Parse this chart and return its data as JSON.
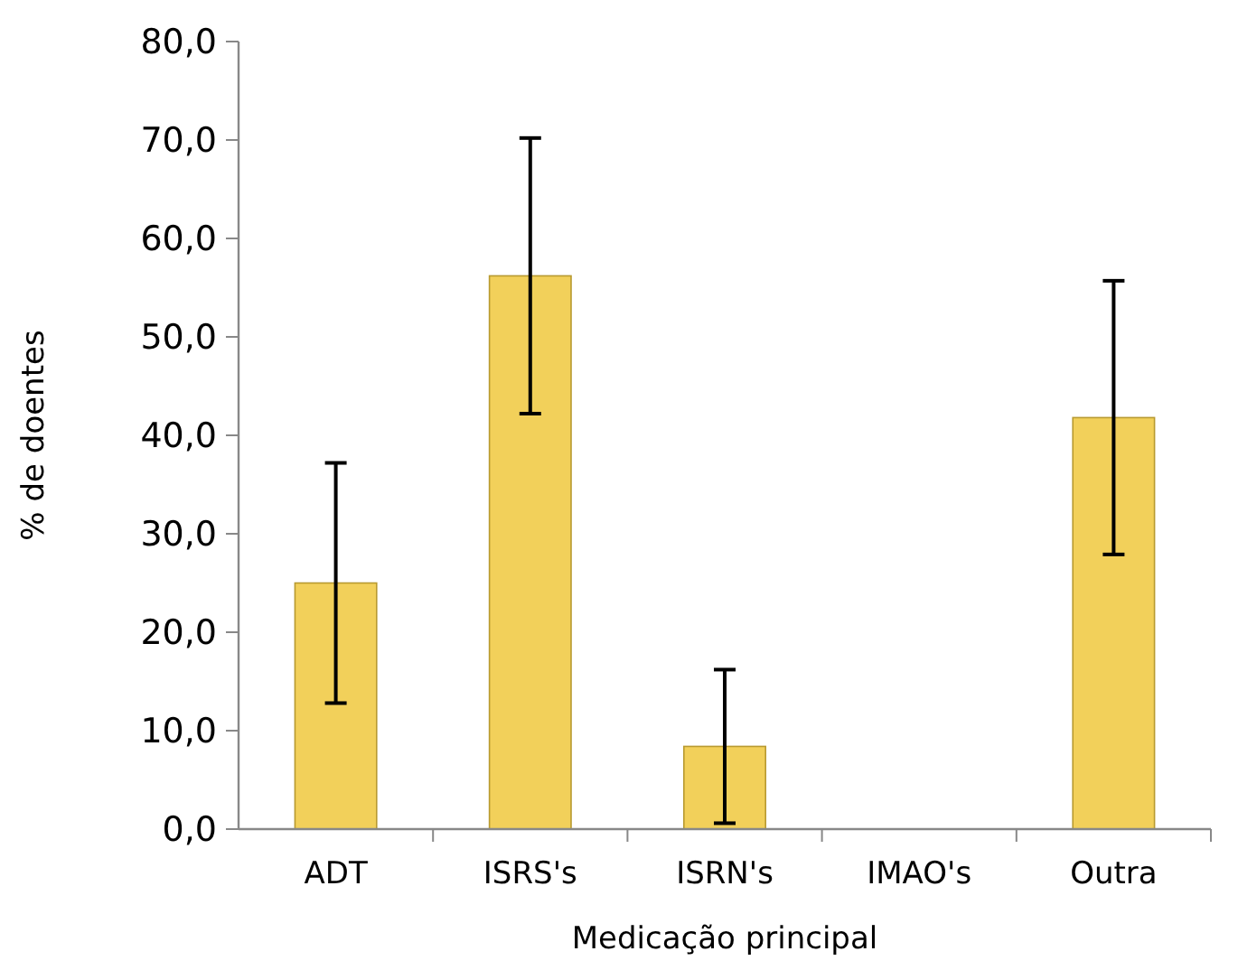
{
  "chart_data": {
    "type": "bar",
    "xlabel": "Medicação principal",
    "ylabel": "% de doentes",
    "categories": [
      "ADT",
      "ISRS's",
      "ISRN's",
      "IMAO's",
      "Outra"
    ],
    "values": [
      25.0,
      56.2,
      8.4,
      0,
      41.8
    ],
    "errors": [
      12.2,
      14.0,
      7.8,
      null,
      13.9
    ],
    "color": "#f2d05a",
    "ylim": [
      0,
      80
    ],
    "yticks": [
      {
        "value": 0,
        "label": "0,0"
      },
      {
        "value": 10,
        "label": "10,0"
      },
      {
        "value": 20,
        "label": "20,0"
      },
      {
        "value": 30,
        "label": "30,0"
      },
      {
        "value": 40,
        "label": "40,0"
      },
      {
        "value": 50,
        "label": "50,0"
      },
      {
        "value": 60,
        "label": "60,0"
      },
      {
        "value": 70,
        "label": "70,0"
      },
      {
        "value": 80,
        "label": "80,0"
      }
    ],
    "grid": false
  }
}
